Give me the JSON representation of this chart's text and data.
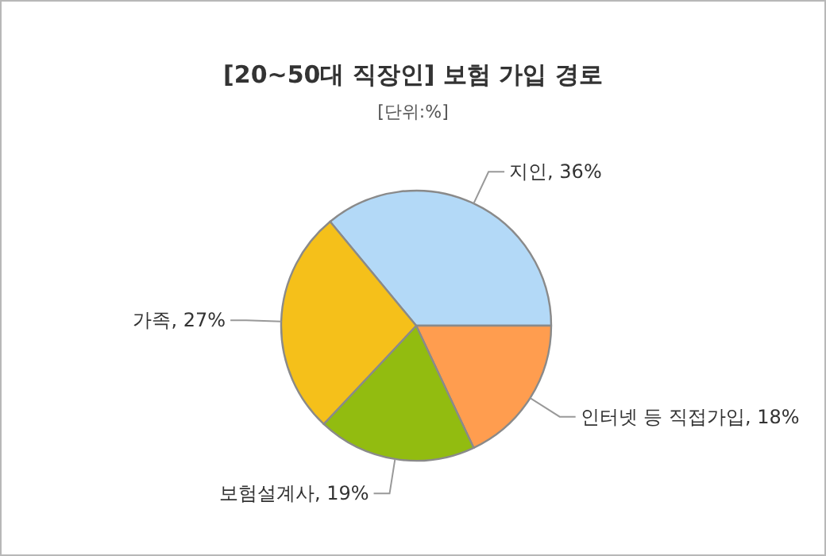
{
  "chart_data": {
    "type": "pie",
    "title": "[20~50대 직장인] 보험 가입 경로",
    "subtitle": "[단위:%]",
    "categories": [
      "지인",
      "인터넷 등 직접가입",
      "보험설계사",
      "가족"
    ],
    "values": [
      36,
      18,
      19,
      27
    ],
    "value_labels": [
      "36%",
      "18%",
      "19%",
      "27%"
    ],
    "colors": [
      "#b3d9f7",
      "#ff9d4f",
      "#92bc10",
      "#f5c01a"
    ]
  }
}
